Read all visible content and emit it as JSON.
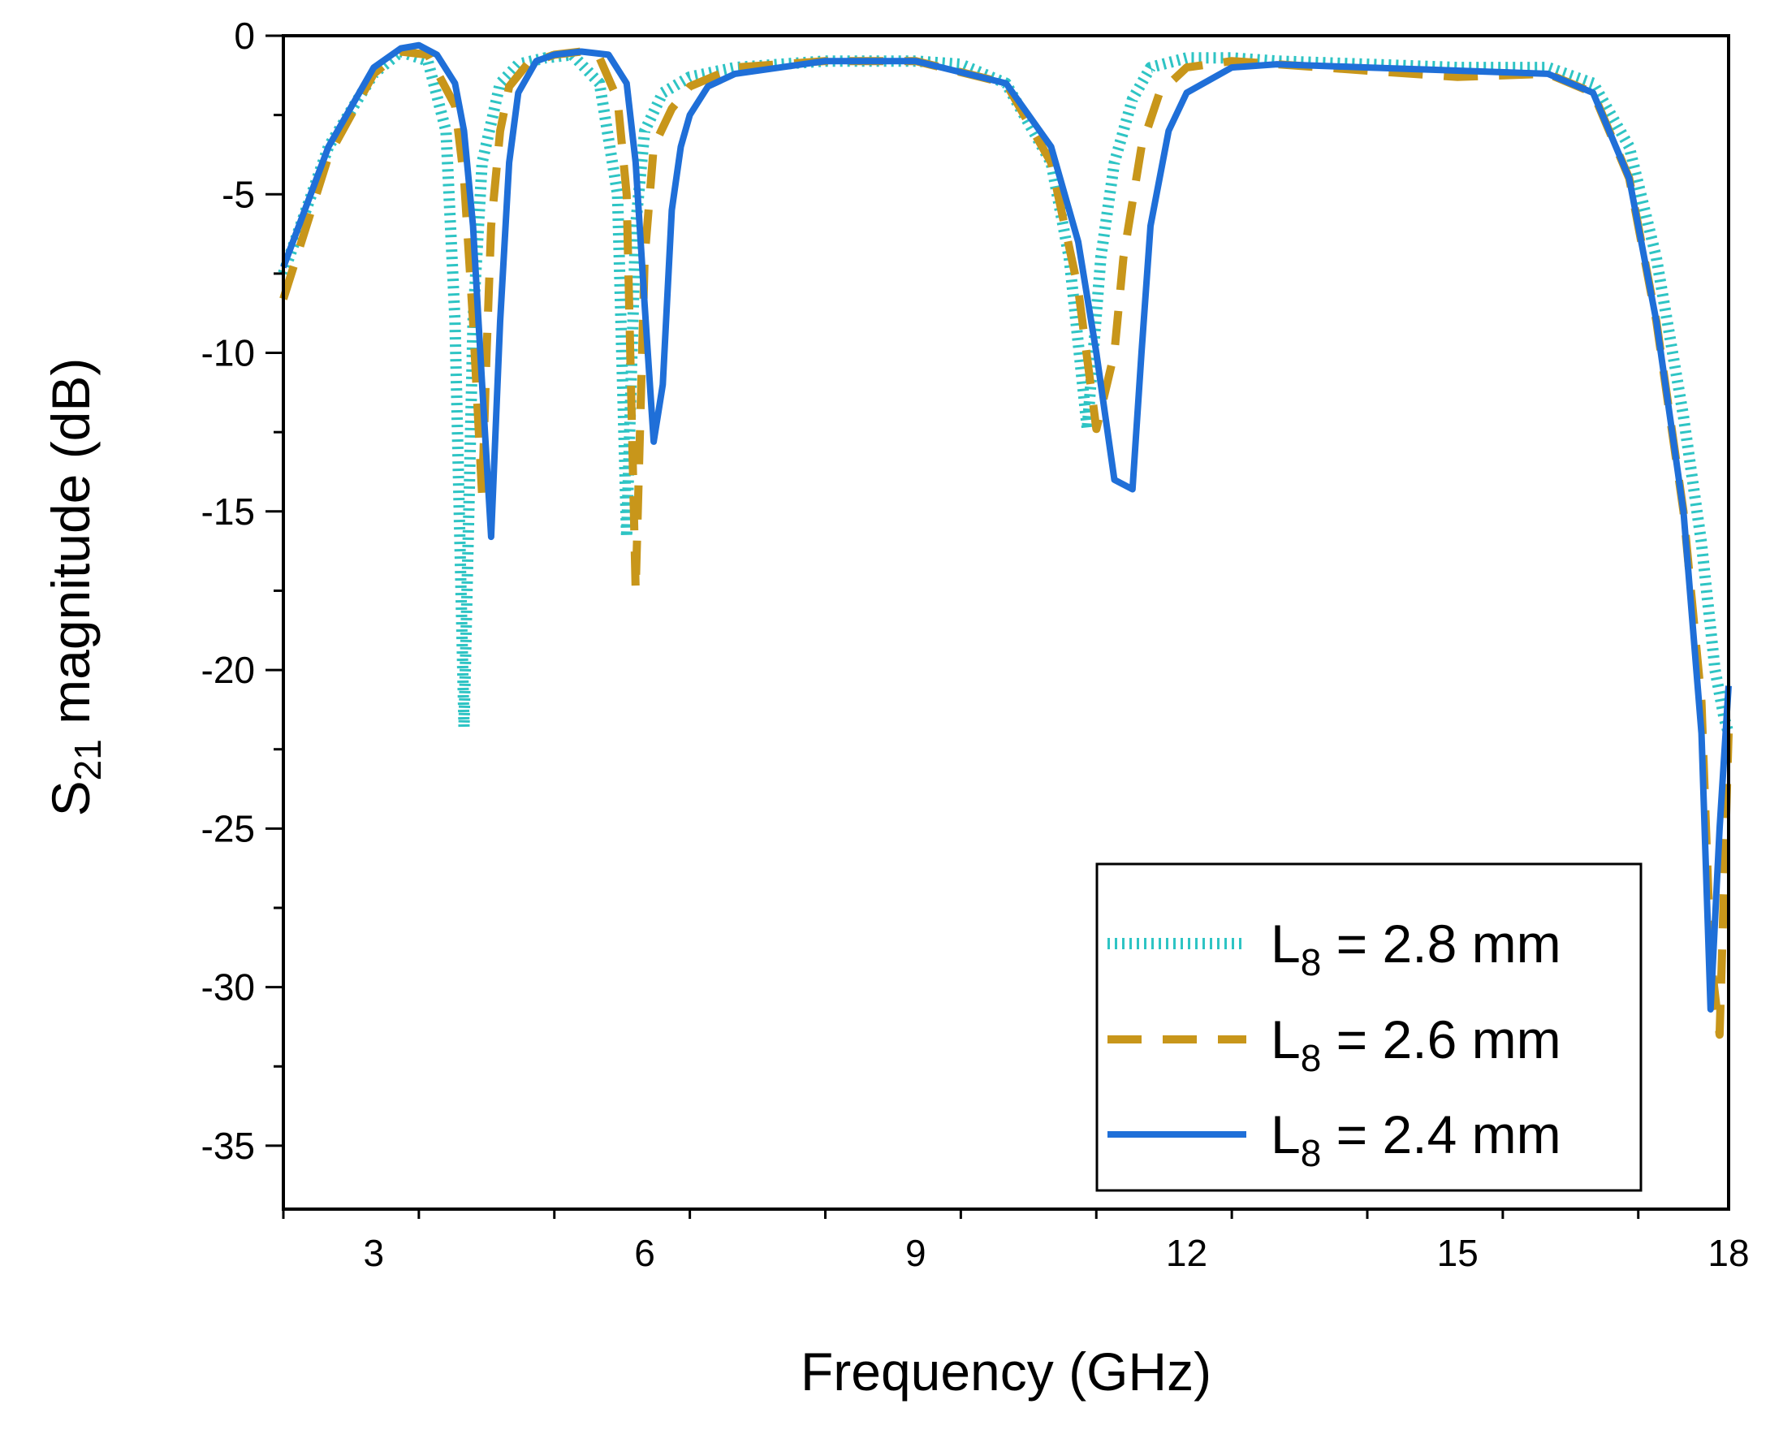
{
  "chart_data": {
    "type": "line",
    "title": "",
    "xlabel": "Frequency (GHz)",
    "ylabel": {
      "main": "S",
      "sub": "21",
      "rest": " magnitude (dB)"
    },
    "xlim": [
      2,
      18
    ],
    "ylim": [
      -37,
      0
    ],
    "xticks": [
      3,
      6,
      9,
      12,
      15,
      18
    ],
    "yticks": [
      0,
      -5,
      -10,
      -15,
      -20,
      -25,
      -30,
      -35
    ],
    "grid": false,
    "legend_position": "bottom-right",
    "series": [
      {
        "name": "L8 = 2.8 mm",
        "legend": {
          "main": "L",
          "sub": "8",
          "rest": " = 2.8 mm"
        },
        "style": "dotted",
        "color": "#2ec4c4",
        "x": [
          2.0,
          2.5,
          3.0,
          3.3,
          3.6,
          3.8,
          3.9,
          4.0,
          4.1,
          4.2,
          4.4,
          4.6,
          4.9,
          5.2,
          5.5,
          5.7,
          5.8,
          5.9,
          6.0,
          6.2,
          6.5,
          7.0,
          8.0,
          9.0,
          9.5,
          10.0,
          10.5,
          10.7,
          10.9,
          11.05,
          11.2,
          11.4,
          11.6,
          12.0,
          12.5,
          13.0,
          14.0,
          15.0,
          16.0,
          16.5,
          16.9,
          17.2,
          17.5,
          17.7,
          17.85,
          17.95,
          18.0
        ],
        "y": [
          -7.5,
          -3.5,
          -1.2,
          -0.5,
          -0.8,
          -3.0,
          -9.0,
          -21.8,
          -9.0,
          -4.0,
          -1.5,
          -0.9,
          -0.7,
          -0.6,
          -1.5,
          -5.0,
          -15.8,
          -6.0,
          -3.0,
          -1.8,
          -1.3,
          -1.0,
          -0.8,
          -0.8,
          -0.9,
          -1.5,
          -4.0,
          -7.0,
          -12.4,
          -7.0,
          -4.0,
          -2.0,
          -1.0,
          -0.7,
          -0.7,
          -0.8,
          -0.9,
          -1.0,
          -1.0,
          -1.5,
          -3.5,
          -7.0,
          -12.0,
          -16.0,
          -20.0,
          -21.5,
          -22.0
        ]
      },
      {
        "name": "L8 = 2.6 mm",
        "legend": {
          "main": "L",
          "sub": "8",
          "rest": " = 2.6 mm"
        },
        "style": "dashed",
        "color": "#c8961a",
        "x": [
          2.0,
          2.5,
          3.0,
          3.3,
          3.6,
          3.9,
          4.0,
          4.1,
          4.2,
          4.25,
          4.3,
          4.4,
          4.5,
          4.7,
          5.0,
          5.3,
          5.5,
          5.7,
          5.8,
          5.9,
          6.0,
          6.1,
          6.3,
          6.5,
          7.0,
          8.0,
          9.0,
          10.0,
          10.5,
          10.8,
          11.0,
          11.2,
          11.3,
          11.5,
          11.7,
          12.0,
          12.5,
          13.0,
          14.0,
          15.0,
          16.0,
          16.5,
          16.9,
          17.2,
          17.5,
          17.7,
          17.8,
          17.9,
          18.0
        ],
        "y": [
          -8.3,
          -3.8,
          -1.2,
          -0.5,
          -0.6,
          -2.2,
          -4.5,
          -9.0,
          -14.5,
          -10.0,
          -6.0,
          -3.0,
          -1.6,
          -0.9,
          -0.6,
          -0.5,
          -0.7,
          -2.0,
          -5.0,
          -17.5,
          -7.0,
          -3.5,
          -2.3,
          -1.6,
          -1.0,
          -0.8,
          -0.8,
          -1.5,
          -4.0,
          -8.0,
          -12.4,
          -10.0,
          -7.0,
          -3.5,
          -1.8,
          -1.0,
          -0.8,
          -0.9,
          -1.1,
          -1.3,
          -1.2,
          -1.8,
          -4.5,
          -9.0,
          -15.0,
          -21.0,
          -29.0,
          -31.5,
          -22.0
        ]
      },
      {
        "name": "L8 = 2.4 mm",
        "legend": {
          "main": "L",
          "sub": "8",
          "rest": " = 2.4 mm"
        },
        "style": "solid",
        "color": "#1f6fd8",
        "x": [
          2.0,
          2.5,
          3.0,
          3.3,
          3.5,
          3.7,
          3.9,
          4.0,
          4.1,
          4.2,
          4.3,
          4.4,
          4.5,
          4.6,
          4.8,
          5.0,
          5.3,
          5.6,
          5.8,
          5.9,
          6.0,
          6.1,
          6.2,
          6.3,
          6.4,
          6.5,
          6.7,
          7.0,
          8.0,
          9.0,
          10.0,
          10.5,
          10.8,
          11.0,
          11.2,
          11.4,
          11.5,
          11.6,
          11.8,
          12.0,
          12.5,
          13.0,
          14.0,
          15.0,
          16.0,
          16.5,
          16.9,
          17.2,
          17.5,
          17.7,
          17.8,
          17.9,
          18.0
        ],
        "y": [
          -7.3,
          -3.5,
          -1.0,
          -0.4,
          -0.3,
          -0.6,
          -1.5,
          -3.0,
          -6.0,
          -11.0,
          -15.8,
          -9.0,
          -4.0,
          -1.8,
          -0.8,
          -0.6,
          -0.5,
          -0.6,
          -1.5,
          -4.0,
          -8.5,
          -12.8,
          -11.0,
          -5.5,
          -3.5,
          -2.5,
          -1.6,
          -1.2,
          -0.8,
          -0.8,
          -1.5,
          -3.5,
          -6.5,
          -10.0,
          -14.0,
          -14.3,
          -10.0,
          -6.0,
          -3.0,
          -1.8,
          -1.0,
          -0.9,
          -1.0,
          -1.1,
          -1.2,
          -1.8,
          -4.5,
          -9.0,
          -15.0,
          -22.0,
          -30.7,
          -25.0,
          -20.5
        ]
      }
    ]
  }
}
